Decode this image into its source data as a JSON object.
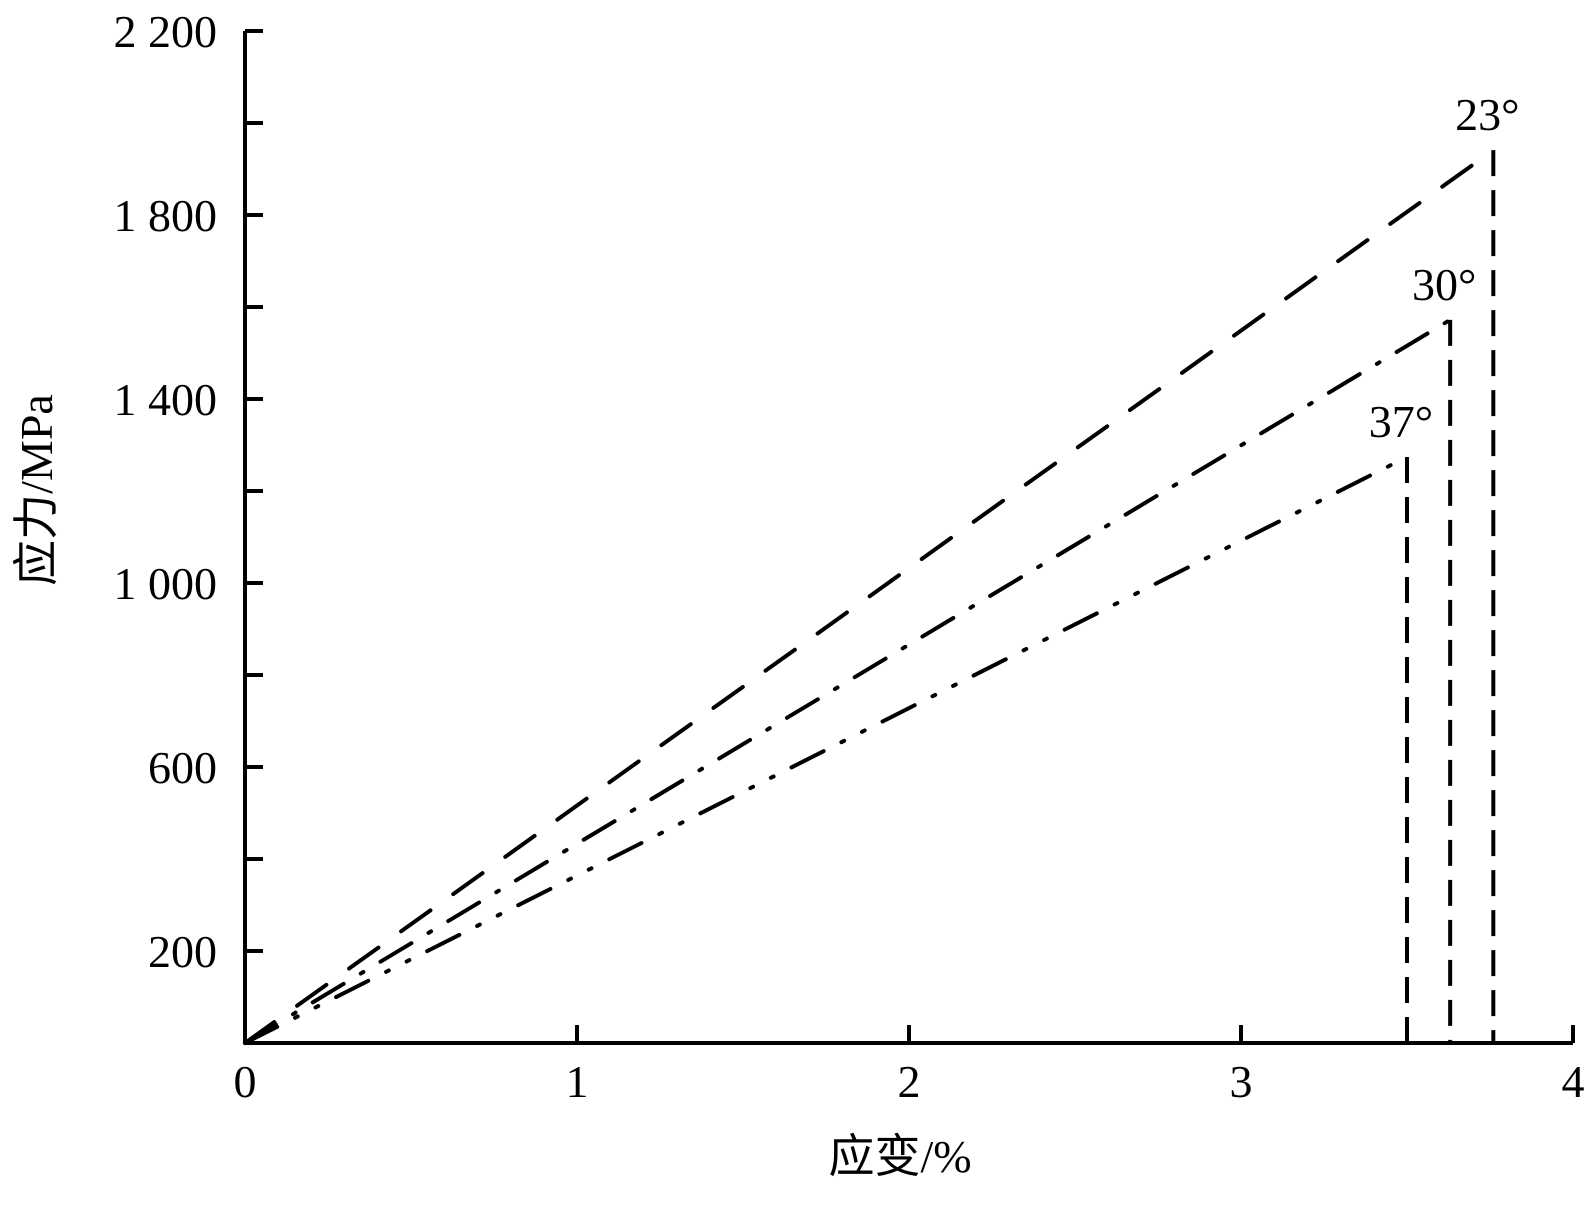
{
  "chart_data": {
    "type": "line",
    "title": "",
    "xlabel": "应变/%",
    "ylabel": "应力/MPa",
    "xlim": [
      0,
      4
    ],
    "ylim": [
      0,
      2200
    ],
    "x_ticks": [
      0,
      1,
      2,
      3,
      4
    ],
    "x_tick_labels": [
      "0",
      "1",
      "2",
      "3",
      "4"
    ],
    "y_ticks": [
      200,
      400,
      600,
      800,
      1000,
      1200,
      1400,
      1600,
      1800,
      2000,
      2200
    ],
    "y_tick_labels": [
      "200",
      "",
      "600",
      "",
      "1 000",
      "",
      "1 400",
      "",
      "1 800",
      "",
      "2 200"
    ],
    "grid": false,
    "legend": "none (inline labels at curve ends)",
    "series": [
      {
        "name": "23°",
        "style": "long-dash",
        "points": [
          [
            0,
            0
          ],
          [
            3.76,
            1941
          ],
          [
            3.76,
            0
          ]
        ]
      },
      {
        "name": "30°",
        "style": "dash-dot",
        "points": [
          [
            0,
            0
          ],
          [
            3.63,
            1572
          ],
          [
            3.63,
            0
          ]
        ]
      },
      {
        "name": "37°",
        "style": "dash-dot-dot",
        "points": [
          [
            0,
            0
          ],
          [
            3.5,
            1274
          ],
          [
            3.5,
            0
          ]
        ]
      }
    ],
    "color": "#000000"
  }
}
